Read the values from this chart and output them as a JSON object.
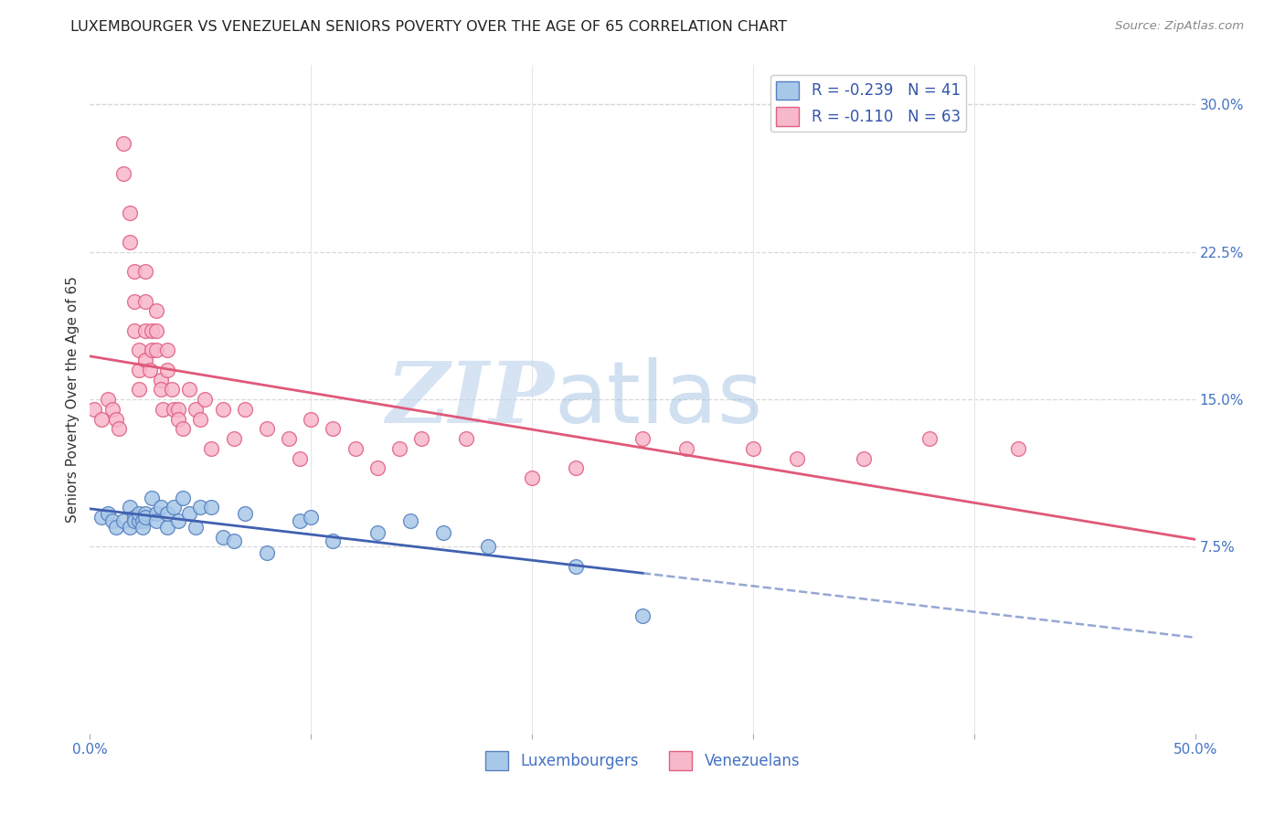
{
  "title": "LUXEMBOURGER VS VENEZUELAN SENIORS POVERTY OVER THE AGE OF 65 CORRELATION CHART",
  "source": "Source: ZipAtlas.com",
  "ylabel": "Seniors Poverty Over the Age of 65",
  "xlim": [
    0.0,
    0.5
  ],
  "ylim": [
    -0.02,
    0.32
  ],
  "yticks_right": [
    0.075,
    0.15,
    0.225,
    0.3
  ],
  "ytick_right_labels": [
    "7.5%",
    "15.0%",
    "22.5%",
    "30.0%"
  ],
  "lux_color": "#a8c8e8",
  "ven_color": "#f8b8cc",
  "lux_edge_color": "#5580c0",
  "ven_edge_color": "#e06080",
  "lux_line_color": "#4060b0",
  "ven_line_color": "#e05878",
  "lux_R": -0.239,
  "lux_N": 41,
  "ven_R": -0.11,
  "ven_N": 63,
  "background_color": "#ffffff",
  "grid_color": "#d8d8d8",
  "lux_scatter_x": [
    0.005,
    0.008,
    0.01,
    0.012,
    0.015,
    0.018,
    0.018,
    0.02,
    0.02,
    0.022,
    0.022,
    0.024,
    0.024,
    0.025,
    0.025,
    0.028,
    0.03,
    0.03,
    0.032,
    0.035,
    0.035,
    0.038,
    0.04,
    0.042,
    0.045,
    0.048,
    0.05,
    0.055,
    0.06,
    0.065,
    0.07,
    0.08,
    0.095,
    0.1,
    0.11,
    0.13,
    0.145,
    0.16,
    0.18,
    0.22,
    0.25
  ],
  "lux_scatter_y": [
    0.09,
    0.092,
    0.088,
    0.085,
    0.088,
    0.095,
    0.085,
    0.09,
    0.088,
    0.088,
    0.092,
    0.088,
    0.085,
    0.092,
    0.09,
    0.1,
    0.092,
    0.088,
    0.095,
    0.085,
    0.092,
    0.095,
    0.088,
    0.1,
    0.092,
    0.085,
    0.095,
    0.095,
    0.08,
    0.078,
    0.092,
    0.072,
    0.088,
    0.09,
    0.078,
    0.082,
    0.088,
    0.082,
    0.075,
    0.065,
    0.04
  ],
  "ven_scatter_x": [
    0.002,
    0.005,
    0.008,
    0.01,
    0.012,
    0.013,
    0.015,
    0.015,
    0.018,
    0.018,
    0.02,
    0.02,
    0.02,
    0.022,
    0.022,
    0.022,
    0.025,
    0.025,
    0.025,
    0.025,
    0.027,
    0.028,
    0.028,
    0.03,
    0.03,
    0.03,
    0.032,
    0.032,
    0.033,
    0.035,
    0.035,
    0.037,
    0.038,
    0.04,
    0.04,
    0.042,
    0.045,
    0.048,
    0.05,
    0.052,
    0.055,
    0.06,
    0.065,
    0.07,
    0.08,
    0.09,
    0.095,
    0.1,
    0.11,
    0.12,
    0.13,
    0.14,
    0.15,
    0.17,
    0.2,
    0.22,
    0.25,
    0.27,
    0.3,
    0.32,
    0.35,
    0.38,
    0.42
  ],
  "ven_scatter_y": [
    0.145,
    0.14,
    0.15,
    0.145,
    0.14,
    0.135,
    0.28,
    0.265,
    0.245,
    0.23,
    0.215,
    0.2,
    0.185,
    0.175,
    0.165,
    0.155,
    0.215,
    0.2,
    0.185,
    0.17,
    0.165,
    0.185,
    0.175,
    0.195,
    0.185,
    0.175,
    0.16,
    0.155,
    0.145,
    0.175,
    0.165,
    0.155,
    0.145,
    0.145,
    0.14,
    0.135,
    0.155,
    0.145,
    0.14,
    0.15,
    0.125,
    0.145,
    0.13,
    0.145,
    0.135,
    0.13,
    0.12,
    0.14,
    0.135,
    0.125,
    0.115,
    0.125,
    0.13,
    0.13,
    0.11,
    0.115,
    0.13,
    0.125,
    0.125,
    0.12,
    0.12,
    0.13,
    0.125
  ]
}
